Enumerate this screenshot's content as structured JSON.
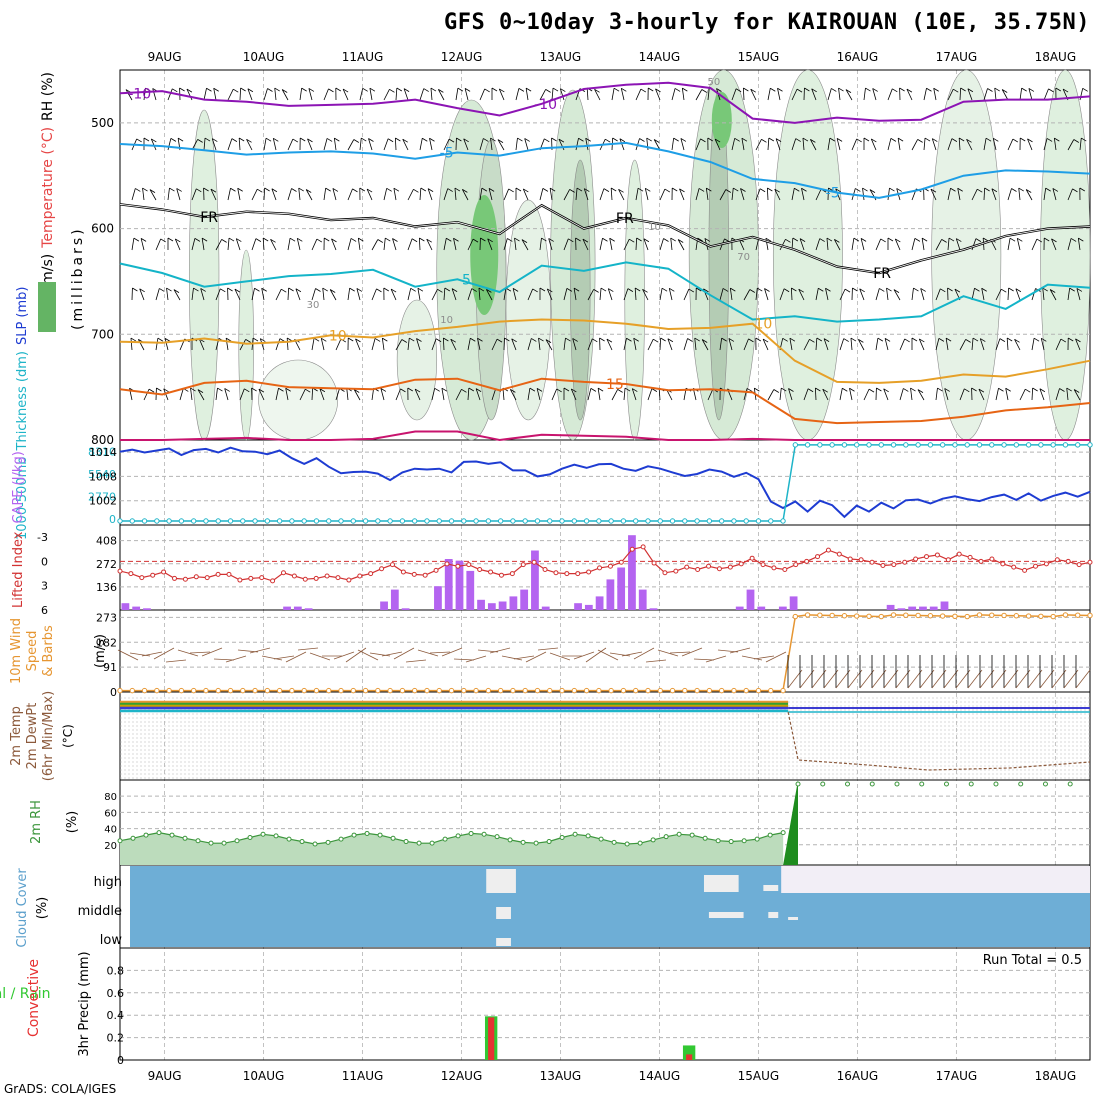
{
  "title": "GFS 0~10day 3-hourly for KAIROUAN (10E, 35.75N)",
  "footer": "GrADS: COLA/IGES",
  "date_labels": [
    "9AUG",
    "10AUG",
    "11AUG",
    "12AUG",
    "13AUG",
    "14AUG",
    "15AUG",
    "16AUG",
    "17AUG",
    "18AUG"
  ],
  "colors": {
    "grid": "#b4b4b4",
    "wind_barb": "#000000",
    "slp": "#1e3cd2",
    "thickness": "#1eb4c8",
    "lifted_index": "#d23232",
    "cape": "#b464f0",
    "wind10m_speed": "#e69632",
    "wind10m_barb": "#8c5a3c",
    "rh2m": "#3c963c",
    "cloud": "#6eaed6",
    "cloud_gap": "#f2eef6",
    "precip_total": "#32c832",
    "precip_conv": "#e63232",
    "iso_purple": "#8c14b4",
    "iso_blue": "#1e9ee6",
    "iso_black": "#000000",
    "iso_cyan": "#14b4c8",
    "iso_yellow": "#e6a028",
    "iso_orange": "#e66414",
    "iso_magenta": "#c8146e"
  },
  "chart_data": [
    {
      "panel": "upper-air",
      "type": "contour",
      "ylabel_parts": [
        "RH (%)",
        "Temperature (°C)",
        "Wind (m/s)"
      ],
      "ylabel2": "(millibars)",
      "yticks": [
        "500",
        "600",
        "700",
        "800"
      ],
      "ylim": [
        800,
        450
      ],
      "isotherms": [
        {
          "label": "-10",
          "values": [
            472,
            470,
            478,
            480,
            484,
            483,
            482,
            478,
            486,
            493,
            482,
            468,
            464,
            462,
            467,
            496,
            500,
            495,
            498,
            497,
            480,
            478,
            478,
            475
          ]
        },
        {
          "label": "-5",
          "values": [
            520,
            522,
            526,
            530,
            528,
            527,
            529,
            534,
            528,
            531,
            524,
            522,
            519,
            527,
            537,
            553,
            557,
            566,
            571,
            563,
            550,
            545,
            546,
            548
          ]
        },
        {
          "label": "FR",
          "values": [
            577,
            582,
            589,
            584,
            586,
            592,
            590,
            598,
            594,
            605,
            578,
            600,
            590,
            597,
            617,
            608,
            620,
            636,
            642,
            630,
            620,
            607,
            600,
            598
          ]
        },
        {
          "label": "5",
          "values": [
            633,
            642,
            655,
            650,
            645,
            643,
            639,
            655,
            648,
            660,
            635,
            640,
            632,
            638,
            663,
            686,
            683,
            688,
            686,
            683,
            664,
            676,
            653,
            656
          ]
        },
        {
          "label": "10",
          "values": [
            707,
            708,
            704,
            709,
            707,
            701,
            703,
            697,
            693,
            688,
            686,
            687,
            690,
            695,
            694,
            690,
            725,
            745,
            746,
            744,
            738,
            740,
            733,
            725
          ]
        },
        {
          "label": "15",
          "values": [
            752,
            757,
            746,
            744,
            750,
            751,
            752,
            743,
            742,
            753,
            742,
            745,
            747,
            753,
            752,
            755,
            780,
            784,
            783,
            782,
            778,
            772,
            769,
            765
          ]
        },
        {
          "label": "",
          "values": [
            800,
            800,
            799,
            798,
            800,
            800,
            799,
            792,
            792,
            800,
            795,
            796,
            797,
            800,
            800,
            799,
            800,
            800,
            800,
            800,
            800,
            800,
            800,
            800
          ]
        }
      ],
      "contour_labels": [
        "50",
        "10",
        "30",
        "10",
        "70"
      ]
    },
    {
      "panel": "slp-thickness",
      "type": "line",
      "ylabel_parts": [
        "1000-500mb",
        "Thickness (dm)",
        "SLP (mb)"
      ],
      "yticks_left": [
        "0",
        "2770",
        "5540",
        "8310"
      ],
      "yticks_right": [
        "1002",
        "1008",
        "1014"
      ],
      "ylim": [
        996,
        1017
      ],
      "series": [
        {
          "name": "SLP",
          "values": [
            1014.1,
            1014.6,
            1013.9,
            1014.4,
            1014.9,
            1013.3,
            1014.5,
            1014.8,
            1013.9,
            1015.1,
            1014.2,
            1014.1,
            1013.5,
            1014.4,
            1012.5,
            1011.1,
            1012.5,
            1010.4,
            1008.8,
            1009.1,
            1009.2,
            1008.7,
            1007.1,
            1009.0,
            1009.9,
            1009.7,
            1009.9,
            1009.0,
            1011.6,
            1011.7,
            1011.1,
            1011.5,
            1009.5,
            1009.5,
            1008.0,
            1008.5,
            1009.9,
            1010.9,
            1010.1,
            1011.0,
            1011.1,
            1009.9,
            1009.4,
            1010.5,
            1009.9,
            1009.0,
            1008.1,
            1008.6,
            1009.7,
            1009.2,
            1007.9,
            1008.9,
            1007.3,
            1001.8,
            1000.2,
            1001.8,
            999.3,
            1002.0,
            1000.9,
            998.0,
            1000.8,
            999.3,
            1001.5,
            1000.1,
            1002.1,
            1002.3,
            1001.3,
            1002.5,
            1003.1,
            1002.4,
            1001.9,
            1002.9,
            1003.5,
            1002.2,
            1003.8,
            1002.0,
            1003.2,
            1004.0,
            1003.0,
            1004.2
          ]
        },
        {
          "name": "Thickness",
          "before": 0,
          "after": 8600,
          "break_day": 6.8
        }
      ]
    },
    {
      "panel": "cape-li",
      "type": "bar",
      "ylabel_parts": [
        "Lifted Index",
        "CAPE (J/kg)"
      ],
      "yticks_left": [
        "6",
        "3",
        "0",
        "-3"
      ],
      "yticks_right": [
        "136",
        "272",
        "408"
      ],
      "series": [
        {
          "name": "CAPE",
          "values": [
            40,
            20,
            10,
            0,
            0,
            0,
            0,
            0,
            0,
            0,
            0,
            0,
            0,
            0,
            0,
            20,
            20,
            10,
            0,
            0,
            0,
            0,
            0,
            0,
            50,
            120,
            10,
            0,
            0,
            140,
            300,
            290,
            230,
            60,
            40,
            50,
            80,
            120,
            350,
            20,
            0,
            0,
            40,
            30,
            80,
            180,
            250,
            440,
            120,
            10,
            0,
            0,
            0,
            0,
            0,
            0,
            0,
            20,
            120,
            20,
            0,
            20,
            80,
            0,
            0,
            0,
            0,
            0,
            0,
            0,
            0,
            30,
            10,
            20,
            20,
            20,
            50,
            0,
            0,
            0,
            0,
            0,
            0,
            0,
            0,
            0,
            0,
            0,
            0,
            0
          ]
        },
        {
          "name": "Lifted Index",
          "values": [
            1.2,
            1.5,
            2.0,
            1.7,
            1.3,
            2.1,
            2.2,
            1.9,
            2.0,
            1.6,
            1.6,
            2.3,
            2.1,
            2.0,
            2.4,
            1.4,
            1.8,
            2.2,
            2.1,
            1.8,
            2.0,
            2.3,
            1.8,
            1.5,
            0.9,
            0.4,
            1.3,
            1.6,
            1.7,
            1.1,
            0.3,
            0.6,
            0.4,
            1.0,
            1.3,
            1.7,
            1.5,
            0.4,
            0.1,
            1.0,
            1.4,
            1.5,
            1.5,
            1.3,
            0.8,
            0.6,
            0.1,
            -1.5,
            -1.8,
            0.2,
            1.4,
            1.2,
            0.7,
            1.0,
            0.6,
            0.9,
            0.7,
            0.3,
            -0.4,
            0.4,
            0.8,
            1.0,
            0.4,
            0.0,
            -0.6,
            -1.4,
            -0.9,
            -0.3,
            -0.2,
            0.1,
            0.5,
            0.4,
            0.1,
            -0.3,
            -0.6,
            -0.8,
            -0.2,
            -0.9,
            -0.5,
            0.0,
            -0.3,
            0.3,
            0.7,
            1.1,
            0.6,
            0.3,
            -0.2,
            0.0,
            0.4,
            0.1
          ]
        }
      ]
    },
    {
      "panel": "wind10m",
      "type": "line",
      "ylabel_parts": [
        "10m Wind",
        "Speed",
        "& Barbs"
      ],
      "ylabel2": "(m/s)",
      "yticks": [
        "0",
        "91",
        "182",
        "273"
      ],
      "ylim": [
        0,
        300
      ],
      "series": [
        {
          "name": "Speed",
          "before": 0,
          "after": 282,
          "break_day": 6.7
        }
      ]
    },
    {
      "panel": "temp2m",
      "type": "line",
      "ylabel_parts": [
        "2m Temp",
        "2m DewPt",
        "(6hr Min/Max)"
      ],
      "ylabel2": "(°C)"
    },
    {
      "panel": "rh2m",
      "type": "area",
      "ylabel_parts": [
        "2m RH"
      ],
      "ylabel2": "(%)",
      "yticks": [
        "20",
        "40",
        "60",
        "80"
      ],
      "series": [
        {
          "name": "2m RH",
          "values": [
            25,
            28,
            32,
            35,
            32,
            28,
            25,
            22,
            22,
            25,
            29,
            33,
            31,
            27,
            24,
            21,
            23,
            27,
            32,
            34,
            32,
            28,
            24,
            22,
            22,
            27,
            31,
            34,
            33,
            30,
            26,
            23,
            22,
            24,
            29,
            33,
            31,
            27,
            23,
            21,
            22,
            26,
            30,
            33,
            32,
            28,
            25,
            24,
            25,
            27,
            32,
            35
          ]
        }
      ]
    },
    {
      "panel": "cloud",
      "type": "heatmap",
      "ylabel_parts": [
        "Cloud Cover"
      ],
      "ylabel2": "(%)",
      "yticks": [
        "high",
        "middle",
        "low"
      ]
    },
    {
      "panel": "precip",
      "type": "bar",
      "ylabel_parts": [
        "Total / Rain",
        "Convective"
      ],
      "ylabel2": "3hr Precip (mm)",
      "yticks": [
        "0",
        "0.2",
        "0.4",
        "0.6",
        "0.8"
      ],
      "ylim": [
        0,
        1.0
      ],
      "run_total": "Run Total = 0.5",
      "series": [
        {
          "name": "Total",
          "bars": [
            {
              "day": 3.75,
              "value": 0.39
            },
            {
              "day": 5.75,
              "value": 0.13
            }
          ]
        },
        {
          "name": "Convective",
          "bars": [
            {
              "day": 3.75,
              "value": 0.38
            },
            {
              "day": 5.75,
              "value": 0.05
            }
          ]
        }
      ]
    }
  ]
}
